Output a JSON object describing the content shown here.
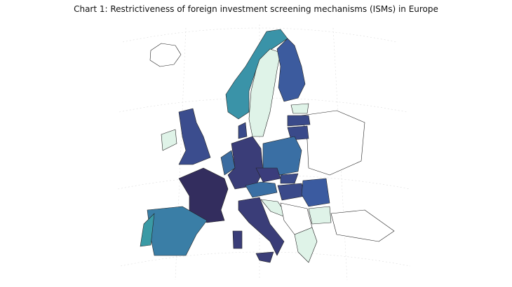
{
  "title": "Chart 1: Restrictiveness of foreign investment screening mechanisms (ISMs) in Europe"
}
